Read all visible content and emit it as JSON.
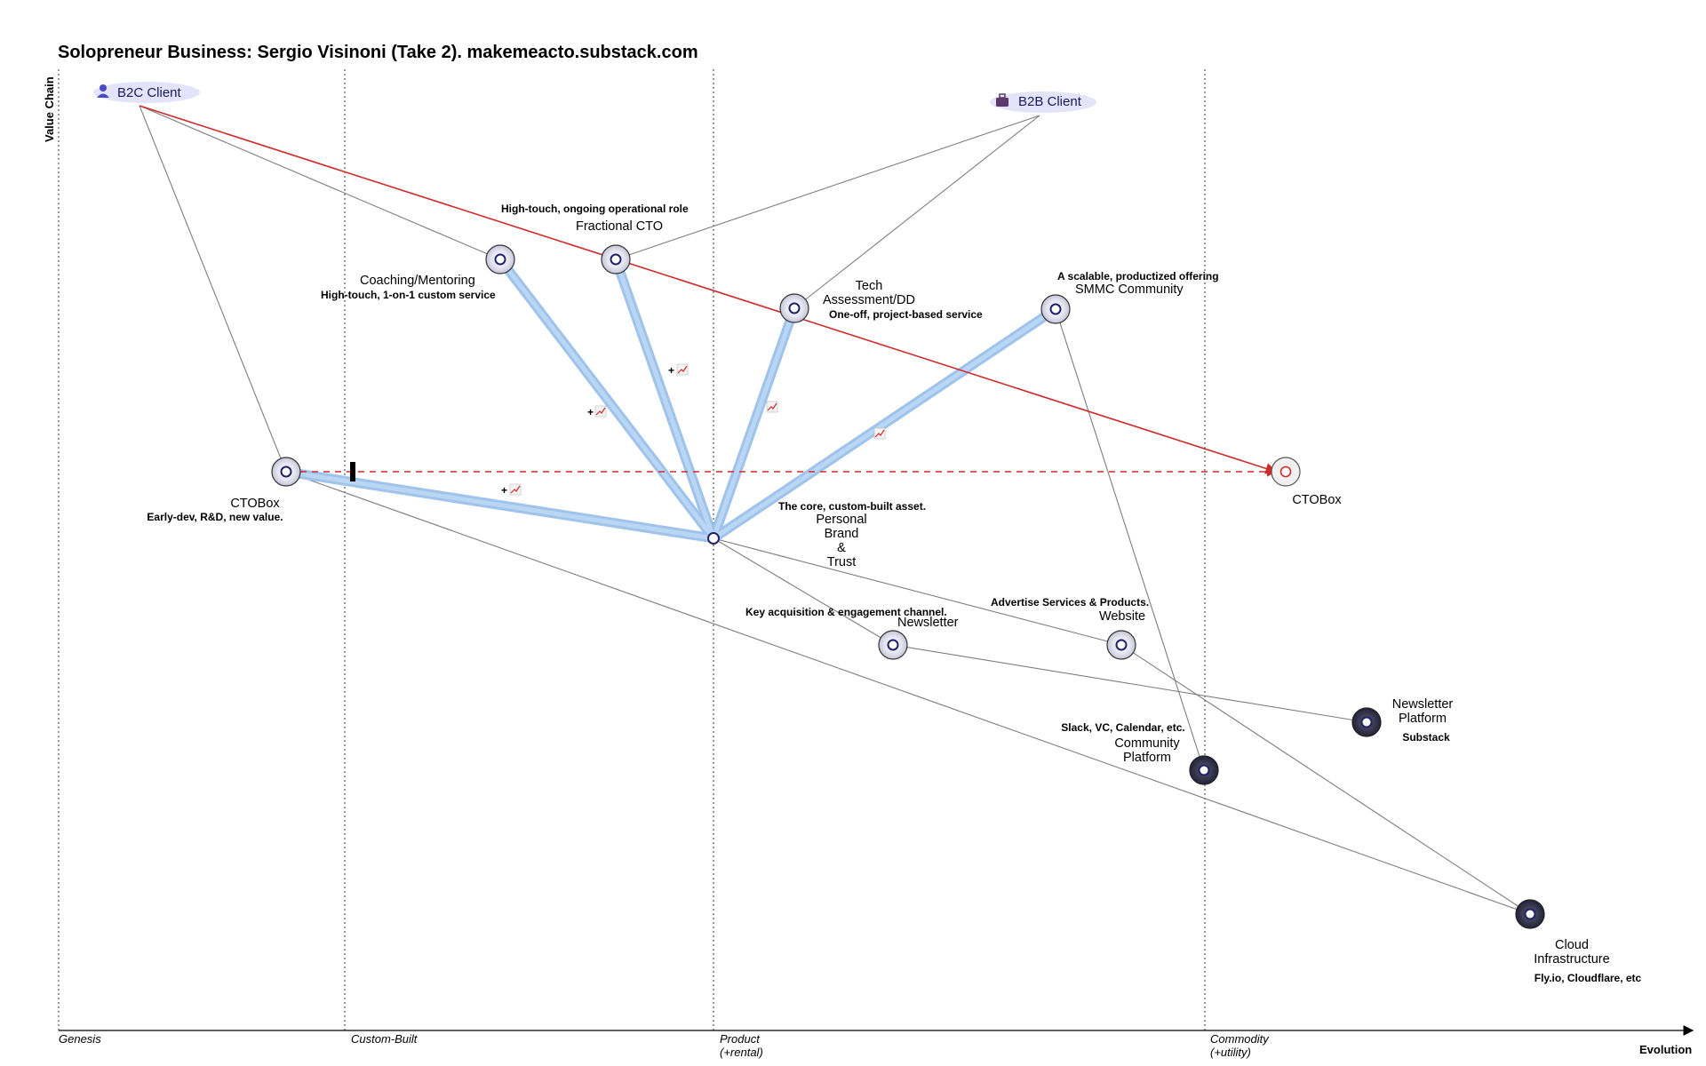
{
  "title": "Solopreneur Business: Sergio Visinoni (Take 2). makemeacto.substack.com",
  "axes": {
    "y_label": "Value Chain",
    "x_label": "Evolution"
  },
  "stages": [
    {
      "label": "Genesis",
      "sub": ""
    },
    {
      "label": "Custom-Built",
      "sub": ""
    },
    {
      "label": "Product",
      "sub": "(+rental)"
    },
    {
      "label": "Commodity",
      "sub": "(+utility)"
    }
  ],
  "users": {
    "b2c": {
      "label": "B2C Client",
      "icon": "person-icon"
    },
    "b2b": {
      "label": "B2B Client",
      "icon": "briefcase-icon"
    }
  },
  "components": {
    "coaching": {
      "name": "Coaching/Mentoring",
      "note": "High-touch, 1-on-1 custom service"
    },
    "fractional": {
      "name": "Fractional CTO",
      "note": "High-touch, ongoing operational role"
    },
    "tech": {
      "name_1": "Tech",
      "name_2": "Assessment/DD",
      "note": "One-off, project-based service"
    },
    "smmc": {
      "name": "SMMC Community",
      "note": "A scalable, productized offering"
    },
    "ctobox": {
      "name": "CTOBox",
      "note": "Early-dev, R&D, new value."
    },
    "ctobox_future": {
      "name": "CTOBox"
    },
    "brand": {
      "name_1": "Personal",
      "name_2": "Brand",
      "name_3": "&",
      "name_4": "Trust",
      "note": "The core, custom-built asset."
    },
    "newsletter": {
      "name": "Newsletter",
      "note": "Key acquisition & engagement channel."
    },
    "website": {
      "name": "Website",
      "note": "Advertise Services & Products."
    },
    "newsletter_platform": {
      "name_1": "Newsletter",
      "name_2": "Platform",
      "note": "Substack"
    },
    "community_platform": {
      "name_1": "Community",
      "name_2": "Platform",
      "note": "Slack, VC, Calendar, etc."
    },
    "cloud": {
      "name_1": "Cloud",
      "name_2": "Infrastructure",
      "note": "Fly.io, Cloudflare, etc"
    }
  },
  "pipeline_marker": "+",
  "colors": {
    "evolution_arrow": "#d12a2a",
    "pipeline": "#9fc3ea",
    "dependency": "#7d7d7d",
    "commodity_node": "#2f2f45",
    "user_glow": "#d7d7f7"
  }
}
